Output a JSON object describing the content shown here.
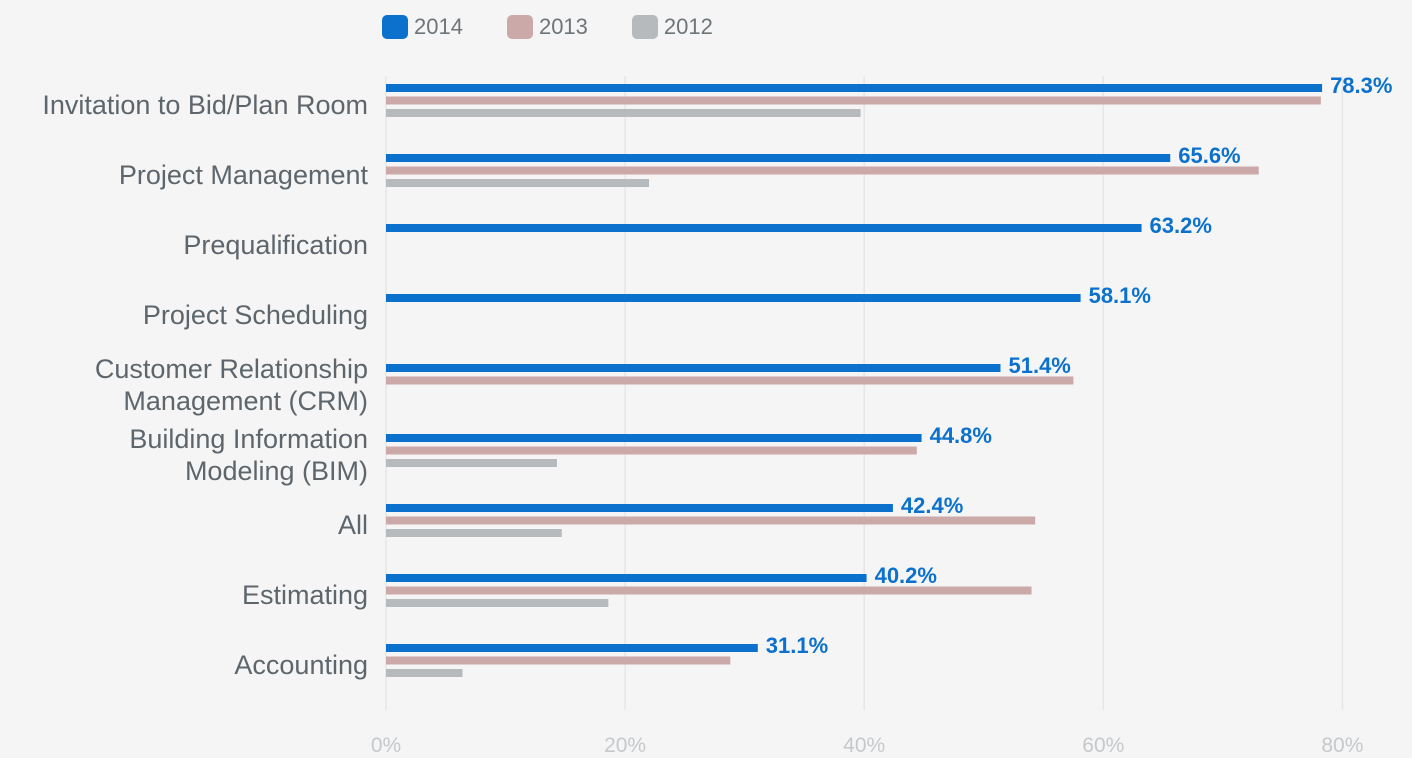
{
  "chart_data": {
    "type": "bar",
    "orientation": "horizontal",
    "categories": [
      [
        "Invitation to  Bid/Plan Room"
      ],
      [
        "Project  Management"
      ],
      [
        "Prequalification"
      ],
      [
        "Project  Scheduling"
      ],
      [
        "Customer Relationship",
        "Management (CRM)"
      ],
      [
        "Building Information",
        "Modeling (BIM)"
      ],
      [
        "All"
      ],
      [
        "Estimating"
      ],
      [
        "Accounting"
      ]
    ],
    "series": [
      {
        "name": "2014",
        "color": "#0b71cc",
        "values": [
          78.3,
          65.6,
          63.2,
          58.1,
          51.4,
          44.8,
          42.4,
          40.2,
          31.1
        ]
      },
      {
        "name": "2013",
        "color": "#cba9a8",
        "values": [
          78.2,
          73.0,
          null,
          null,
          57.5,
          44.4,
          54.3,
          54.0,
          28.8
        ]
      },
      {
        "name": "2012",
        "color": "#b7babc",
        "values": [
          39.7,
          22.0,
          null,
          null,
          null,
          14.3,
          14.7,
          18.6,
          6.4
        ]
      }
    ],
    "data_labels": [
      "78.3%",
      "65.6%",
      "63.2%",
      "58.1%",
      "51.4%",
      "44.8%",
      "42.4%",
      "40.2%",
      "31.1%"
    ],
    "xticks": [
      "0%",
      "20%",
      "40%",
      "60%",
      "80%"
    ],
    "xlim": [
      0,
      80
    ],
    "grid": true,
    "legend_position": "top-left",
    "title": "",
    "xlabel": "",
    "ylabel": ""
  }
}
